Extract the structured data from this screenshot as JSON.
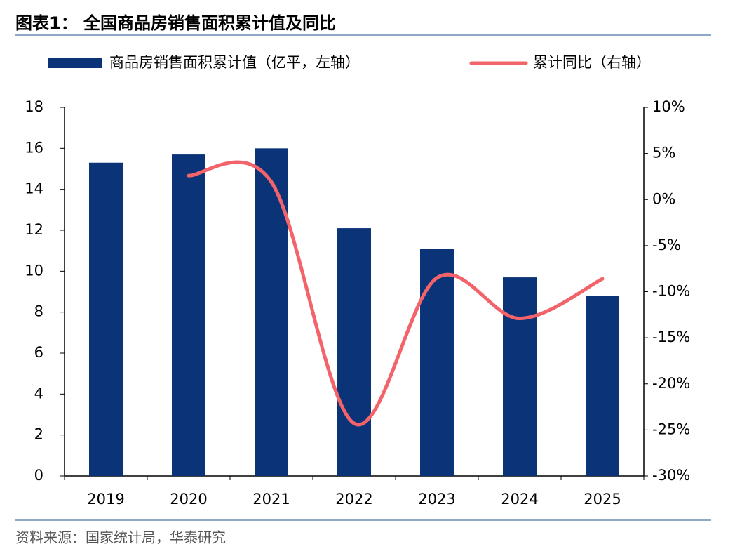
{
  "chart_data": {
    "type": "bar_line",
    "title": "图表1：  全国商品房销售面积累计值及同比",
    "source": "资料来源：国家统计局，华泰研究",
    "categories": [
      "2019",
      "2020",
      "2021",
      "2022",
      "2023",
      "2024",
      "2025"
    ],
    "series": [
      {
        "name": "商品房销售面积累计值（亿平，左轴）",
        "color": "#0b3478",
        "type": "bar",
        "values": [
          15.3,
          15.7,
          16.0,
          12.1,
          11.1,
          9.7,
          8.8
        ]
      },
      {
        "name": "累计同比（右轴）",
        "color": "#f2646a",
        "type": "line",
        "axis": "y2",
        "values": [
          null,
          2.6,
          1.9,
          -24.3,
          -8.5,
          -12.9,
          -8.6
        ]
      }
    ],
    "ylim": [
      0,
      18
    ],
    "yticks": [
      0,
      2,
      4,
      6,
      8,
      10,
      12,
      14,
      16,
      18
    ],
    "y2lim": [
      -30,
      10
    ],
    "y2ticks": [
      {
        "value": 10,
        "label": "10%"
      },
      {
        "value": 5,
        "label": "5%"
      },
      {
        "value": 0,
        "label": "0%"
      },
      {
        "value": -5,
        "label": "-5%"
      },
      {
        "value": -10,
        "label": "-10%"
      },
      {
        "value": -15,
        "label": "-15%"
      },
      {
        "value": -20,
        "label": "-20%"
      },
      {
        "value": -25,
        "label": "-25%"
      },
      {
        "value": -30,
        "label": "-30%"
      }
    ]
  }
}
